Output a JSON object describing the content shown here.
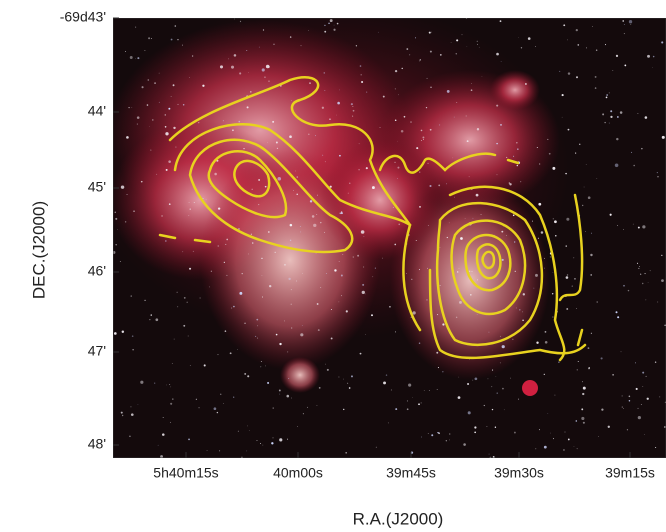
{
  "figure": {
    "x_label": "R.A.(J2000)",
    "y_label": "DEC.(J2000)",
    "x_ticks": [
      "5h40m15s",
      "40m00s",
      "39m45s",
      "39m30s",
      "39m15s"
    ],
    "y_ticks": [
      "-69d43'",
      "44'",
      "45'",
      "46'",
      "47'",
      "48'"
    ]
  }
}
